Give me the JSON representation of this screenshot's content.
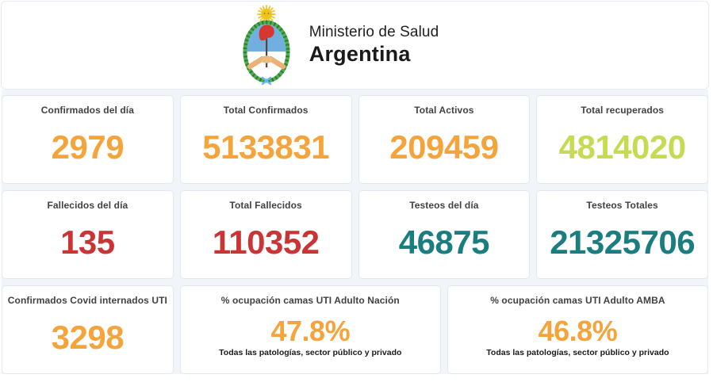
{
  "header": {
    "ministry": "Ministerio de Salud",
    "country": "Argentina",
    "logo": "argentina-coat-of-arms"
  },
  "colors": {
    "orange": "#F5A43C",
    "lime": "#C6DA52",
    "red": "#CB3434",
    "teal": "#1A7E80"
  },
  "cards": [
    {
      "title": "Confirmados del día",
      "value": "2979",
      "color": "orange"
    },
    {
      "title": "Total Confirmados",
      "value": "5133831",
      "color": "orange"
    },
    {
      "title": "Total Activos",
      "value": "209459",
      "color": "orange"
    },
    {
      "title": "Total recuperados",
      "value": "4814020",
      "color": "lime"
    },
    {
      "title": "Fallecidos del día",
      "value": "135",
      "color": "red"
    },
    {
      "title": "Total Fallecidos",
      "value": "110352",
      "color": "red"
    },
    {
      "title": "Testeos del día",
      "value": "46875",
      "color": "teal"
    },
    {
      "title": "Testeos Totales",
      "value": "21325706",
      "color": "teal"
    },
    {
      "title": "Confirmados Covid internados UTI",
      "value": "3298",
      "color": "orange"
    },
    {
      "title": "% ocupación camas UTI Adulto Nación",
      "value": "47.8%",
      "color": "orange",
      "subtitle": "Todas las patologías, sector público y privado"
    },
    {
      "title": "% ocupación camas UTI Adulto AMBA",
      "value": "46.8%",
      "color": "orange",
      "subtitle": "Todas las patologías, sector público y privado"
    }
  ]
}
